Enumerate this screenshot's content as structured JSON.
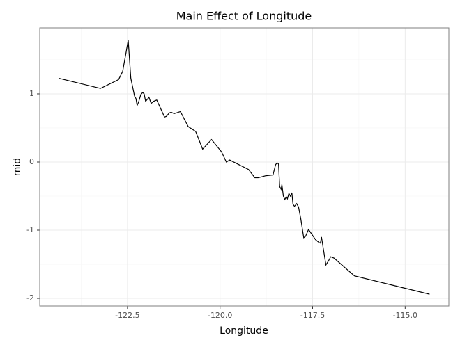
{
  "chart_data": {
    "type": "line",
    "title": "Main Effect of Longitude",
    "x_label": "Longitude",
    "y_label": "mid",
    "x": [
      -124.36,
      -123.23,
      -122.74,
      -122.63,
      -122.54,
      -122.48,
      -122.41,
      -122.31,
      -122.27,
      -122.24,
      -122.2,
      -122.14,
      -122.09,
      -122.05,
      -122.01,
      -121.95,
      -121.92,
      -121.86,
      -121.8,
      -121.71,
      -121.6,
      -121.5,
      -121.45,
      -121.37,
      -121.32,
      -121.24,
      -121.07,
      -120.86,
      -120.66,
      -120.47,
      -120.23,
      -119.96,
      -119.83,
      -119.74,
      -119.23,
      -119.06,
      -118.97,
      -118.76,
      -118.57,
      -118.5,
      -118.46,
      -118.42,
      -118.39,
      -118.35,
      -118.33,
      -118.29,
      -118.25,
      -118.21,
      -118.18,
      -118.14,
      -118.1,
      -118.06,
      -118.03,
      -117.99,
      -117.93,
      -117.88,
      -117.82,
      -117.74,
      -117.69,
      -117.61,
      -117.42,
      -117.33,
      -117.29,
      -117.26,
      -117.22,
      -117.14,
      -117.07,
      -117.01,
      -116.92,
      -116.37,
      -114.34
    ],
    "values": [
      1.23,
      1.08,
      1.21,
      1.33,
      1.6,
      1.79,
      1.23,
      0.97,
      0.93,
      0.83,
      0.88,
      0.99,
      1.02,
      1.0,
      0.89,
      0.93,
      0.95,
      0.86,
      0.89,
      0.91,
      0.78,
      0.66,
      0.67,
      0.72,
      0.73,
      0.71,
      0.74,
      0.52,
      0.45,
      0.19,
      0.33,
      0.15,
      0.0,
      0.03,
      -0.11,
      -0.23,
      -0.23,
      -0.2,
      -0.19,
      -0.04,
      -0.01,
      -0.03,
      -0.36,
      -0.4,
      -0.33,
      -0.5,
      -0.55,
      -0.51,
      -0.54,
      -0.46,
      -0.5,
      -0.45,
      -0.62,
      -0.65,
      -0.61,
      -0.66,
      -0.83,
      -1.11,
      -1.09,
      -0.99,
      -1.14,
      -1.18,
      -1.19,
      -1.1,
      -1.24,
      -1.51,
      -1.45,
      -1.39,
      -1.41,
      -1.67,
      -1.94
    ],
    "color": "#000000",
    "xlim": [
      -124.87,
      -113.82
    ],
    "xticks": [
      -122.5,
      {
        "value": -120,
        "label": "-120.0"
      },
      -117.5,
      {
        "value": -115,
        "label": "-115.0"
      }
    ],
    "ylim": [
      -2.112,
      1.969
    ],
    "yticks": [
      -2,
      -1,
      0,
      1
    ],
    "grid": true,
    "minor_grid": true
  }
}
